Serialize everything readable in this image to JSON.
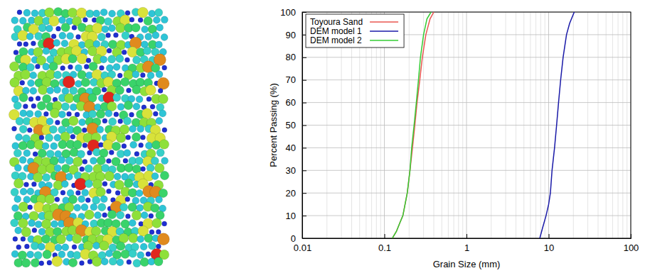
{
  "chart_data": {
    "type": "line",
    "x_label": "Grain Size (mm)",
    "y_label": "Percent Passing (%)",
    "log": "x",
    "grid": true,
    "legend": "upper left",
    "xlim": [
      0.01,
      100
    ],
    "xticks": [
      0.01,
      0.1,
      1,
      10,
      100
    ],
    "ylim": [
      0,
      100
    ],
    "yticks": [
      0,
      10,
      20,
      30,
      40,
      50,
      60,
      70,
      80,
      90,
      100
    ],
    "series": [
      {
        "name": "Toyoura Sand",
        "color": "#e8564f",
        "line_style": "solid",
        "x": [
          0.125,
          0.14,
          0.155,
          0.168,
          0.19,
          0.205,
          0.22,
          0.235,
          0.25,
          0.27,
          0.29,
          0.32,
          0.36,
          0.4
        ],
        "values": [
          0,
          3,
          7,
          10,
          20,
          30,
          40,
          50,
          60,
          70,
          80,
          90,
          97,
          100
        ]
      },
      {
        "name": "DEM model 1",
        "color": "#1a1aa8",
        "line_style": "solid",
        "x": [
          7.8,
          8.5,
          9.3,
          10,
          10.5,
          11,
          11.8,
          12.5,
          13.2,
          14,
          15,
          16.5,
          18,
          20.5
        ],
        "values": [
          0,
          5,
          10,
          15,
          20,
          30,
          40,
          50,
          60,
          70,
          80,
          90,
          95,
          100
        ]
      },
      {
        "name": "DEM model 2",
        "color": "#33cc33",
        "line_style": "solid",
        "x": [
          0.125,
          0.14,
          0.155,
          0.168,
          0.19,
          0.205,
          0.215,
          0.23,
          0.245,
          0.26,
          0.275,
          0.3,
          0.33,
          0.37
        ],
        "values": [
          0,
          3,
          7,
          10,
          20,
          30,
          40,
          50,
          60,
          70,
          80,
          90,
          97,
          100
        ]
      }
    ]
  }
}
